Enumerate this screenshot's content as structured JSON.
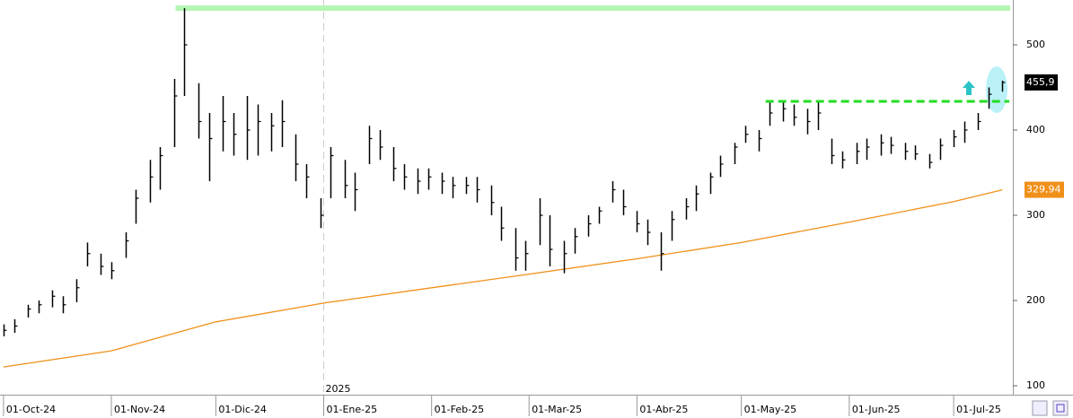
{
  "chart_data": {
    "type": "ohlc",
    "xlim": [
      "2024-09-30",
      "2025-07-18"
    ],
    "ylim": [
      89.5,
      552.6
    ],
    "yticks": [
      100,
      200,
      300,
      400,
      500
    ],
    "xticks": [
      {
        "value": "2024-10-01",
        "label": "01-Oct-24"
      },
      {
        "value": "2024-11-01",
        "label": "01-Nov-24"
      },
      {
        "value": "2024-12-01",
        "label": "01-Dic-24"
      },
      {
        "value": "2025-01-01",
        "label": "01-Ene-25"
      },
      {
        "value": "2025-02-01",
        "label": "01-Feb-25"
      },
      {
        "value": "2025-03-01",
        "label": "01-Mar-25"
      },
      {
        "value": "2025-04-01",
        "label": "01-Abr-25"
      },
      {
        "value": "2025-05-01",
        "label": "01-May-25"
      },
      {
        "value": "2025-06-01",
        "label": "01-Jun-25"
      },
      {
        "value": "2025-07-01",
        "label": "01-Jul-25"
      }
    ],
    "year_marker": {
      "value": "2025-01-01",
      "label": "2025"
    },
    "color": "#000000",
    "x": [
      "2024-10-01",
      "2024-10-04",
      "2024-10-08",
      "2024-10-11",
      "2024-10-15",
      "2024-10-18",
      "2024-10-22",
      "2024-10-25",
      "2024-10-29",
      "2024-11-01",
      "2024-11-05",
      "2024-11-08",
      "2024-11-12",
      "2024-11-15",
      "2024-11-19",
      "2024-11-22",
      "2024-11-26",
      "2024-11-29",
      "2024-12-03",
      "2024-12-06",
      "2024-12-10",
      "2024-12-13",
      "2024-12-17",
      "2024-12-20",
      "2024-12-24",
      "2024-12-27",
      "2024-12-31",
      "2025-01-03",
      "2025-01-07",
      "2025-01-10",
      "2025-01-14",
      "2025-01-17",
      "2025-01-21",
      "2025-01-24",
      "2025-01-28",
      "2025-01-31",
      "2025-02-04",
      "2025-02-07",
      "2025-02-11",
      "2025-02-14",
      "2025-02-18",
      "2025-02-21",
      "2025-02-25",
      "2025-02-28",
      "2025-03-04",
      "2025-03-07",
      "2025-03-11",
      "2025-03-14",
      "2025-03-18",
      "2025-03-21",
      "2025-03-25",
      "2025-03-28",
      "2025-04-01",
      "2025-04-04",
      "2025-04-08",
      "2025-04-11",
      "2025-04-15",
      "2025-04-18",
      "2025-04-22",
      "2025-04-25",
      "2025-04-29",
      "2025-05-02",
      "2025-05-06",
      "2025-05-09",
      "2025-05-13",
      "2025-05-16",
      "2025-05-20",
      "2025-05-23",
      "2025-05-27",
      "2025-05-30",
      "2025-06-03",
      "2025-06-06",
      "2025-06-10",
      "2025-06-13",
      "2025-06-17",
      "2025-06-20",
      "2025-06-24",
      "2025-06-27",
      "2025-07-01",
      "2025-07-04",
      "2025-07-08",
      "2025-07-11",
      "2025-07-15"
    ],
    "high": [
      172,
      178,
      195,
      200,
      212,
      205,
      225,
      268,
      255,
      245,
      280,
      330,
      365,
      380,
      460,
      543,
      455,
      420,
      440,
      420,
      440,
      430,
      420,
      435,
      395,
      360,
      320,
      380,
      365,
      350,
      405,
      400,
      380,
      360,
      355,
      355,
      350,
      345,
      345,
      345,
      335,
      310,
      285,
      270,
      320,
      300,
      270,
      285,
      300,
      310,
      340,
      330,
      305,
      295,
      280,
      305,
      320,
      335,
      350,
      370,
      385,
      405,
      400,
      433,
      433,
      430,
      425,
      433,
      390,
      375,
      385,
      390,
      395,
      392,
      385,
      382,
      372,
      390,
      400,
      410,
      420,
      450,
      458
    ],
    "low": [
      158,
      162,
      180,
      185,
      192,
      185,
      198,
      240,
      230,
      225,
      250,
      290,
      315,
      330,
      380,
      440,
      390,
      340,
      375,
      370,
      365,
      370,
      375,
      380,
      340,
      320,
      285,
      320,
      320,
      305,
      360,
      365,
      340,
      330,
      325,
      330,
      325,
      320,
      325,
      315,
      300,
      270,
      235,
      235,
      265,
      240,
      232,
      255,
      275,
      290,
      315,
      300,
      280,
      265,
      235,
      270,
      295,
      305,
      325,
      345,
      360,
      385,
      375,
      405,
      410,
      405,
      395,
      400,
      360,
      355,
      360,
      365,
      370,
      372,
      365,
      365,
      355,
      365,
      380,
      385,
      400,
      425,
      445
    ],
    "close": [
      165,
      170,
      190,
      195,
      205,
      195,
      215,
      255,
      240,
      235,
      270,
      320,
      345,
      370,
      440,
      500,
      410,
      390,
      410,
      395,
      400,
      410,
      405,
      410,
      360,
      345,
      300,
      370,
      335,
      330,
      390,
      380,
      355,
      345,
      340,
      345,
      340,
      335,
      335,
      330,
      315,
      285,
      250,
      255,
      300,
      260,
      255,
      275,
      290,
      305,
      330,
      310,
      290,
      280,
      255,
      295,
      310,
      325,
      345,
      360,
      380,
      395,
      390,
      420,
      425,
      415,
      410,
      420,
      370,
      365,
      375,
      380,
      385,
      382,
      375,
      372,
      362,
      382,
      392,
      400,
      410,
      442,
      455.9
    ],
    "ma": {
      "color": "#f0901a",
      "x": [
        "2024-10-01",
        "2024-11-01",
        "2024-12-01",
        "2025-01-01",
        "2025-02-01",
        "2025-03-01",
        "2025-04-01",
        "2025-05-01",
        "2025-06-01",
        "2025-07-01",
        "2025-07-15"
      ],
      "values": [
        122,
        141,
        175,
        197,
        215,
        231,
        249,
        268,
        292,
        316,
        329.94
      ]
    },
    "resistance": {
      "value": 543,
      "from": "2024-11-22",
      "color": "#b3f5b3"
    },
    "breakout": {
      "value": 433.7,
      "from": "2025-05-09",
      "color": "#22dd22"
    },
    "last_price": {
      "value": 455.9,
      "label": "455,9"
    },
    "ma_last": {
      "value": 329.94,
      "label": "329,94"
    }
  }
}
